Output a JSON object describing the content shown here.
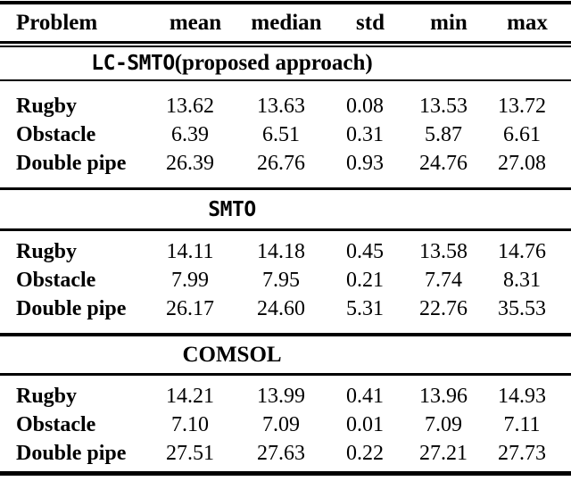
{
  "table": {
    "columns": [
      "Problem",
      "mean",
      "median",
      "std",
      "min",
      "max"
    ],
    "sections": [
      {
        "title_mono": "LC-SMTO",
        "title_serif": " (proposed approach)",
        "rows": [
          {
            "label": "Rugby",
            "values": [
              "13.62",
              "13.63",
              "0.08",
              "13.53",
              "13.72"
            ]
          },
          {
            "label": "Obstacle",
            "values": [
              "6.39",
              "6.51",
              "0.31",
              "5.87",
              "6.61"
            ]
          },
          {
            "label": "Double pipe",
            "values": [
              "26.39",
              "26.76",
              "0.93",
              "24.76",
              "27.08"
            ]
          }
        ]
      },
      {
        "title_mono": "SMTO",
        "title_serif": "",
        "rows": [
          {
            "label": "Rugby",
            "values": [
              "14.11",
              "14.18",
              "0.45",
              "13.58",
              "14.76"
            ]
          },
          {
            "label": "Obstacle",
            "values": [
              "7.99",
              "7.95",
              "0.21",
              "7.74",
              "8.31"
            ]
          },
          {
            "label": "Double pipe",
            "values": [
              "26.17",
              "24.60",
              "5.31",
              "22.76",
              "35.53"
            ]
          }
        ]
      },
      {
        "title_mono": "",
        "title_serif": "COMSOL",
        "rows": [
          {
            "label": "Rugby",
            "values": [
              "14.21",
              "13.99",
              "0.41",
              "13.96",
              "14.93"
            ]
          },
          {
            "label": "Obstacle",
            "values": [
              "7.10",
              "7.09",
              "0.01",
              "7.09",
              "7.11"
            ]
          },
          {
            "label": "Double pipe",
            "values": [
              "27.51",
              "27.63",
              "0.22",
              "27.21",
              "27.73"
            ]
          }
        ]
      }
    ]
  },
  "colors": {
    "text": "#000000",
    "background": "#ffffff",
    "rule": "#000000"
  }
}
